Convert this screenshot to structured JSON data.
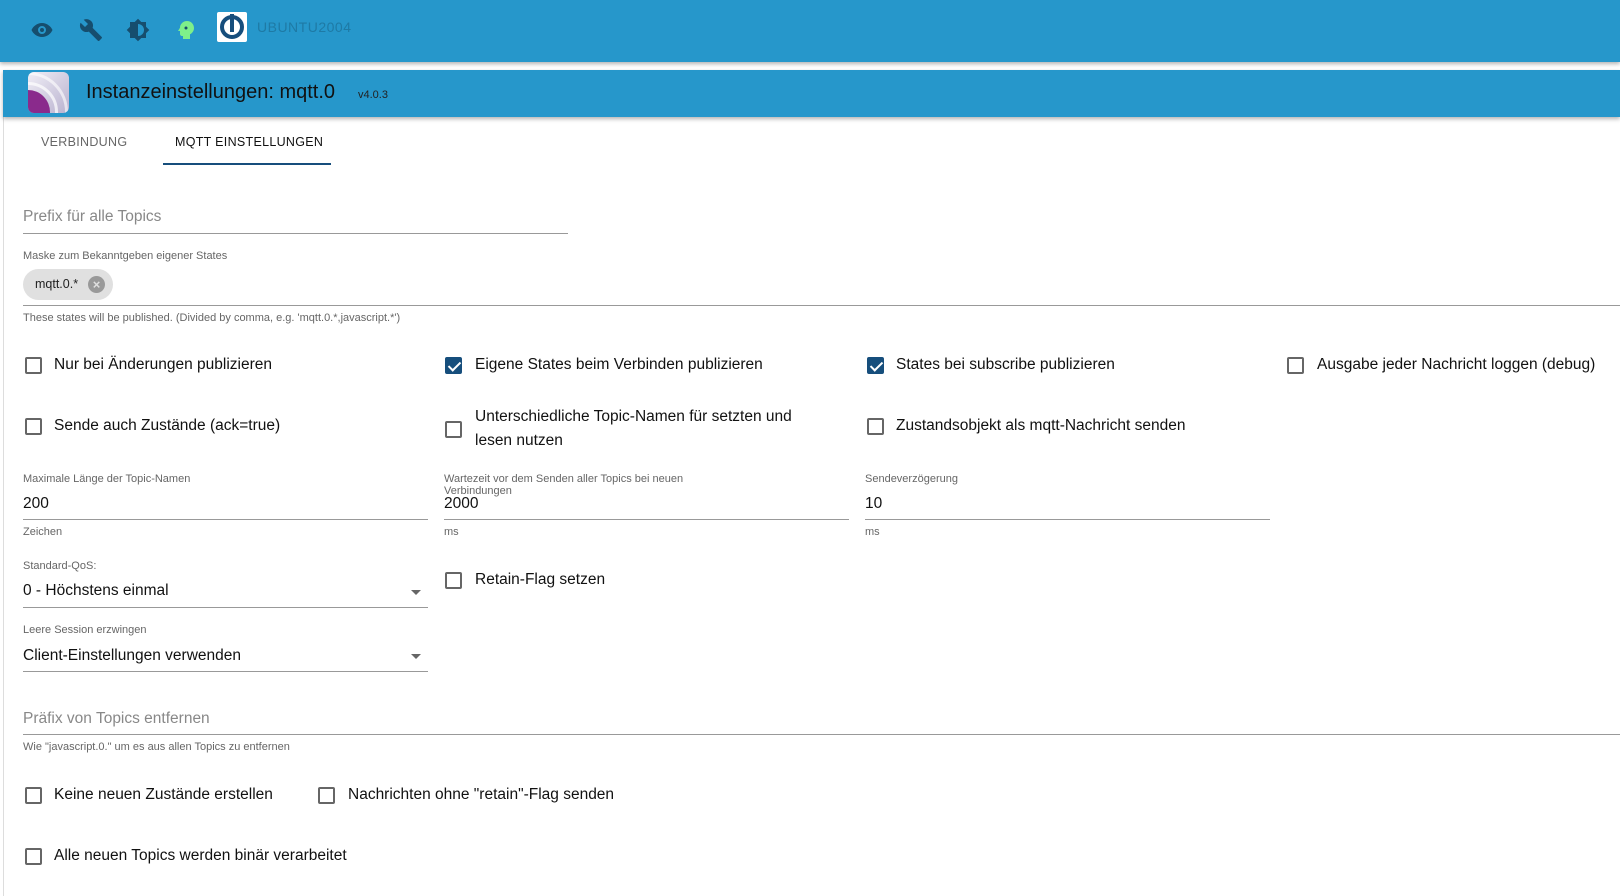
{
  "topbar": {
    "icons": [
      "eye-icon",
      "wrench-icon",
      "brightness-icon",
      "expert-head-icon",
      "iobroker-logo"
    ],
    "host": "UBUNTU2004",
    "accent": "#2697cb"
  },
  "header": {
    "title": "Instanzeinstellungen: mqtt.0",
    "version": "v4.0.3"
  },
  "tabs": [
    {
      "label": "VERBINDUNG",
      "active": false
    },
    {
      "label": "MQTT EINSTELLUNGEN",
      "active": true
    }
  ],
  "form": {
    "prefix": {
      "placeholder": "Prefix für alle Topics",
      "value": ""
    },
    "mask": {
      "label": "Maske zum Bekanntgeben eigener States",
      "chips": [
        "mqtt.0.*"
      ],
      "helper": "These states will be published. (Divided by comma, e.g. 'mqtt.0.*,javascript.*')"
    },
    "checks1": [
      {
        "label": "Nur bei Änderungen publizieren",
        "checked": false
      },
      {
        "label": "Eigene States beim Verbinden publizieren",
        "checked": true
      },
      {
        "label": "States bei subscribe publizieren",
        "checked": true
      },
      {
        "label": "Ausgabe jeder Nachricht loggen (debug)",
        "checked": false
      },
      {
        "label": "Sende auch Zustände (ack=true)",
        "checked": false
      },
      {
        "label": "Unterschiedliche Topic-Namen für setzten und lesen nutzen",
        "checked": false
      },
      {
        "label": "Zustandsobjekt als mqtt-Nachricht senden",
        "checked": false
      }
    ],
    "numbers": [
      {
        "label": "Maximale Länge der Topic-Namen",
        "value": "200",
        "helper": "Zeichen"
      },
      {
        "label": "Wartezeit vor dem Senden aller Topics bei neuen Verbindungen",
        "value": "2000",
        "helper": "ms"
      },
      {
        "label": "Sendeverzögerung",
        "value": "10",
        "helper": "ms"
      }
    ],
    "qos": {
      "label": "Standard-QoS:",
      "value": "0 - Höchstens einmal"
    },
    "retain": {
      "label": "Retain-Flag setzen",
      "checked": false
    },
    "session": {
      "label": "Leere Session erzwingen",
      "value": "Client-Einstellungen verwenden"
    },
    "removePrefix": {
      "placeholder": "Präfix von Topics entfernen",
      "value": "",
      "helper": "Wie \"javascript.0.\" um es aus allen Topics zu entfernen"
    },
    "checks2": [
      {
        "label": "Keine neuen Zustände erstellen",
        "checked": false
      },
      {
        "label": "Nachrichten ohne \"retain\"-Flag senden",
        "checked": false
      },
      {
        "label": "Alle neuen Topics werden binär verarbeitet",
        "checked": false
      }
    ]
  }
}
